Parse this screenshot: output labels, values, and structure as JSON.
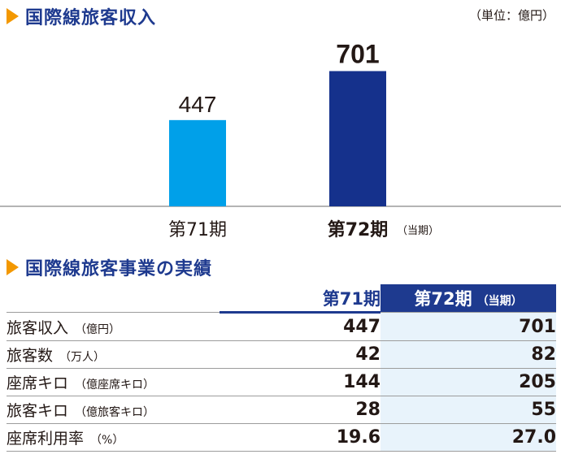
{
  "sections": {
    "revenue_title": "国際線旅客収入",
    "unit": "（単位：億円）",
    "results_title": "国際線旅客事業の実績"
  },
  "chart_data": {
    "type": "bar",
    "categories": [
      "第71期",
      "第72期"
    ],
    "category_notes": [
      "",
      "（当期）"
    ],
    "values": [
      447,
      701
    ],
    "colors": [
      "#00a0e9",
      "#15318c"
    ],
    "title": "国際線旅客収入",
    "unit": "（単位：億円）",
    "ylim": [
      0,
      800
    ],
    "grid": false
  },
  "table": {
    "header": {
      "col1": "第71期",
      "col2": "第72期",
      "col2_note": "（当期）"
    },
    "rows": [
      {
        "label": "旅客収入",
        "note": "（億円）",
        "v71": "447",
        "v72": "701"
      },
      {
        "label": "旅客数",
        "note": "（万人）",
        "v71": "42",
        "v72": "82"
      },
      {
        "label": "座席キロ",
        "note": "（億座席キロ）",
        "v71": "144",
        "v72": "205"
      },
      {
        "label": "旅客キロ",
        "note": "（億旅客キロ）",
        "v71": "28",
        "v72": "55"
      },
      {
        "label": "座席利用率",
        "note": "（%）",
        "v71": "19.6",
        "v72": "27.0"
      }
    ]
  }
}
